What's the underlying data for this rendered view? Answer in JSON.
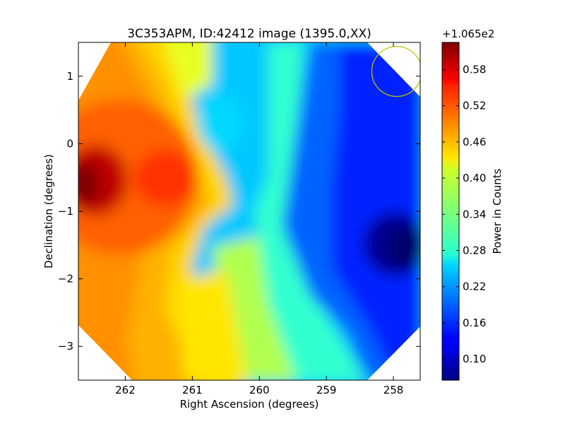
{
  "chart_data": {
    "type": "heatmap",
    "title": "3C353APM, ID:42412 image (1395.0,XX)",
    "xlabel": "Right Ascension (degrees)",
    "ylabel": "Declination (degrees)",
    "xlim": [
      262.7,
      257.6
    ],
    "ylim": [
      -3.5,
      1.5
    ],
    "x_ticks": [
      262,
      261,
      260,
      259,
      258
    ],
    "y_ticks": [
      1,
      0,
      -1,
      -2,
      -3
    ],
    "colorbar": {
      "label": "Power in Counts",
      "offset_text": "+1.065e2",
      "range": [
        0.065,
        0.625
      ],
      "ticks": [
        "0.58",
        "0.52",
        "0.46",
        "0.40",
        "0.34",
        "0.28",
        "0.22",
        "0.16",
        "0.10"
      ],
      "colormap": "jet"
    },
    "field_features": [
      {
        "ra": 262.5,
        "dec": -0.5,
        "value": 0.62,
        "spread": 0.55
      },
      {
        "ra": 261.35,
        "dec": -0.5,
        "value": 0.55,
        "spread": 0.35
      },
      {
        "ra": 260.45,
        "dec": 0.2,
        "value": 0.23,
        "spread": 0.35
      },
      {
        "ra": 257.9,
        "dec": -1.5,
        "value": 0.07,
        "spread": 0.6
      },
      {
        "ra": 259.7,
        "dec": -0.5,
        "value": 0.27,
        "spread": 0.3
      }
    ],
    "annotations": [
      {
        "type": "circle",
        "ra": 257.95,
        "dec": 1.07,
        "radius_deg": 0.37,
        "color": "#bfbf00"
      }
    ]
  }
}
